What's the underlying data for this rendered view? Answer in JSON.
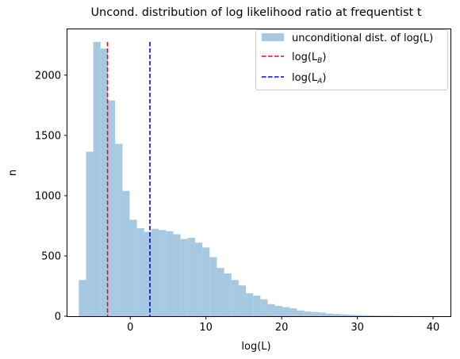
{
  "chart_data": {
    "type": "histogram",
    "title": "Uncond. distribution of log likelihood ratio at frequentist  t",
    "xlabel": "log(L)",
    "ylabel": "n",
    "xlim": [
      -8.3,
      42.3
    ],
    "ylim": [
      0,
      2380
    ],
    "xticks": [
      0,
      10,
      20,
      30,
      40
    ],
    "yticks": [
      0,
      500,
      1000,
      1500,
      2000,
      2500
    ],
    "xtick_labels": [
      "0",
      "10",
      "20",
      "30",
      "40"
    ],
    "ytick_labels": [
      "0",
      "500",
      "1000",
      "1500",
      "2000"
    ],
    "bin_start": -6.8,
    "bin_width": 0.96,
    "counts": [
      300,
      1365,
      2275,
      2220,
      1790,
      1430,
      1040,
      800,
      730,
      700,
      725,
      715,
      705,
      680,
      640,
      650,
      610,
      570,
      490,
      400,
      355,
      300,
      255,
      190,
      170,
      140,
      100,
      85,
      75,
      65,
      48,
      40,
      35,
      30,
      22,
      18,
      15,
      12,
      10,
      8,
      6,
      5,
      4,
      3,
      2,
      2,
      1,
      1,
      1,
      0
    ],
    "bar_color": "#a6c8e0",
    "vlines": [
      {
        "name": "log($L_B$)",
        "x": -3.0,
        "color": "#ff0000",
        "style": "dashed"
      },
      {
        "name": "log($L_A$)",
        "x": 2.6,
        "color": "#0000ff",
        "style": "dashed"
      }
    ],
    "legend": {
      "placement": "top-right",
      "entries": [
        {
          "label": "unconditional dist. of log(L)",
          "kind": "patch",
          "color": "#a6c8e0"
        },
        {
          "label": "log(L",
          "sub": "B",
          "close": ")",
          "kind": "line",
          "color": "#ff0000"
        },
        {
          "label": "log(L",
          "sub": "A",
          "close": ")",
          "kind": "line",
          "color": "#0000ff"
        }
      ]
    },
    "grid": false
  }
}
